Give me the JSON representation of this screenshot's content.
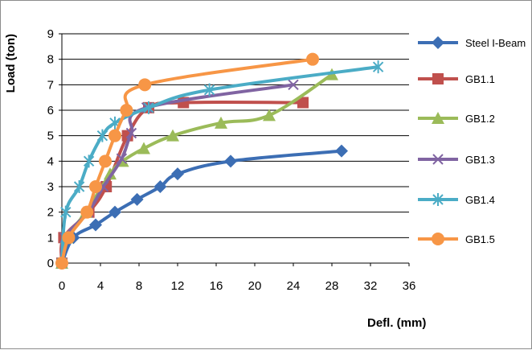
{
  "chart_data": {
    "type": "line",
    "xlabel": "Defl. (mm)",
    "ylabel": "Load (ton)",
    "xlim": [
      0,
      36
    ],
    "ylim": [
      0,
      9
    ],
    "x_ticks": [
      "0",
      "4",
      "8",
      "12",
      "16",
      "20",
      "24",
      "28",
      "32",
      "36"
    ],
    "y_ticks": [
      "0",
      "1",
      "2",
      "3",
      "4",
      "5",
      "6",
      "7",
      "8",
      "9"
    ],
    "grid": "horizontal",
    "legend_position": "right",
    "series": [
      {
        "name": "Steel I-Beam",
        "color": "#3c6eb4",
        "marker": "diamond",
        "points": [
          [
            0,
            0
          ],
          [
            1.2,
            1
          ],
          [
            3.5,
            1.5
          ],
          [
            5.5,
            2
          ],
          [
            7.8,
            2.5
          ],
          [
            10.2,
            3
          ],
          [
            12,
            3.5
          ],
          [
            17.5,
            4
          ],
          [
            29,
            4.4
          ]
        ]
      },
      {
        "name": "GB1.1",
        "color": "#c0504d",
        "marker": "square",
        "points": [
          [
            0,
            0
          ],
          [
            0.2,
            1
          ],
          [
            2.8,
            2
          ],
          [
            4.6,
            3
          ],
          [
            6.8,
            5
          ],
          [
            9,
            6.1
          ],
          [
            12.6,
            6.3
          ],
          [
            25,
            6.3
          ]
        ]
      },
      {
        "name": "GB1.2",
        "color": "#9bbb59",
        "marker": "triangle",
        "points": [
          [
            0,
            0
          ],
          [
            0.5,
            1
          ],
          [
            2.5,
            2
          ],
          [
            5,
            3.5
          ],
          [
            6.3,
            4
          ],
          [
            8.5,
            4.5
          ],
          [
            11.5,
            5
          ],
          [
            16.5,
            5.5
          ],
          [
            21.5,
            5.8
          ],
          [
            28,
            7.4
          ]
        ]
      },
      {
        "name": "GB1.3",
        "color": "#8064a2",
        "marker": "x",
        "points": [
          [
            0,
            0
          ],
          [
            0.3,
            1
          ],
          [
            2.7,
            2
          ],
          [
            4.3,
            3
          ],
          [
            6.2,
            4.1
          ],
          [
            7.2,
            5.1
          ],
          [
            8.8,
            6.1
          ],
          [
            24,
            7
          ]
        ]
      },
      {
        "name": "GB1.4",
        "color": "#4bacc6",
        "marker": "asterisk",
        "points": [
          [
            0,
            0
          ],
          [
            0.4,
            2
          ],
          [
            1.8,
            3
          ],
          [
            2.8,
            4
          ],
          [
            4.2,
            5
          ],
          [
            5.5,
            5.5
          ],
          [
            9,
            6.1
          ],
          [
            15.3,
            6.8
          ],
          [
            32.8,
            7.7
          ]
        ]
      },
      {
        "name": "GB1.5",
        "color": "#f79646",
        "marker": "circle",
        "points": [
          [
            0,
            0
          ],
          [
            0.7,
            1
          ],
          [
            2.6,
            2
          ],
          [
            3.5,
            3
          ],
          [
            4.5,
            4
          ],
          [
            5.5,
            5
          ],
          [
            6.7,
            6
          ],
          [
            8.6,
            7
          ],
          [
            26,
            8
          ]
        ]
      }
    ]
  }
}
